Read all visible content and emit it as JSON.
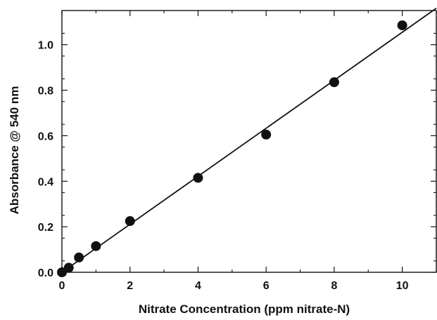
{
  "chart_data": {
    "type": "scatter",
    "xlabel": "Nitrate Concentration (ppm nitrate-N)",
    "ylabel": "Absorbance @ 540 nm",
    "xlim": [
      0,
      11
    ],
    "ylim": [
      0,
      1.15
    ],
    "x_ticks": [
      "0",
      "2",
      "4",
      "6",
      "8",
      "10"
    ],
    "y_ticks": [
      "0.0",
      "0.2",
      "0.4",
      "0.6",
      "0.8",
      "1.0"
    ],
    "grid": false,
    "legend": "none",
    "series": [
      {
        "points": [
          {
            "x": 0,
            "y": 0.0
          },
          {
            "x": 0.2,
            "y": 0.02
          },
          {
            "x": 0.5,
            "y": 0.065
          },
          {
            "x": 1,
            "y": 0.115
          },
          {
            "x": 2,
            "y": 0.225
          },
          {
            "x": 4,
            "y": 0.415
          },
          {
            "x": 6,
            "y": 0.605
          },
          {
            "x": 8,
            "y": 0.835
          },
          {
            "x": 10,
            "y": 1.085
          }
        ]
      }
    ],
    "fit_line": {
      "x1": 0,
      "y1": 0.0,
      "x2": 11,
      "y2": 1.16
    },
    "colors": {
      "marker": "#111111",
      "line": "#111111",
      "axes": "#111111",
      "background": "#ffffff"
    }
  }
}
